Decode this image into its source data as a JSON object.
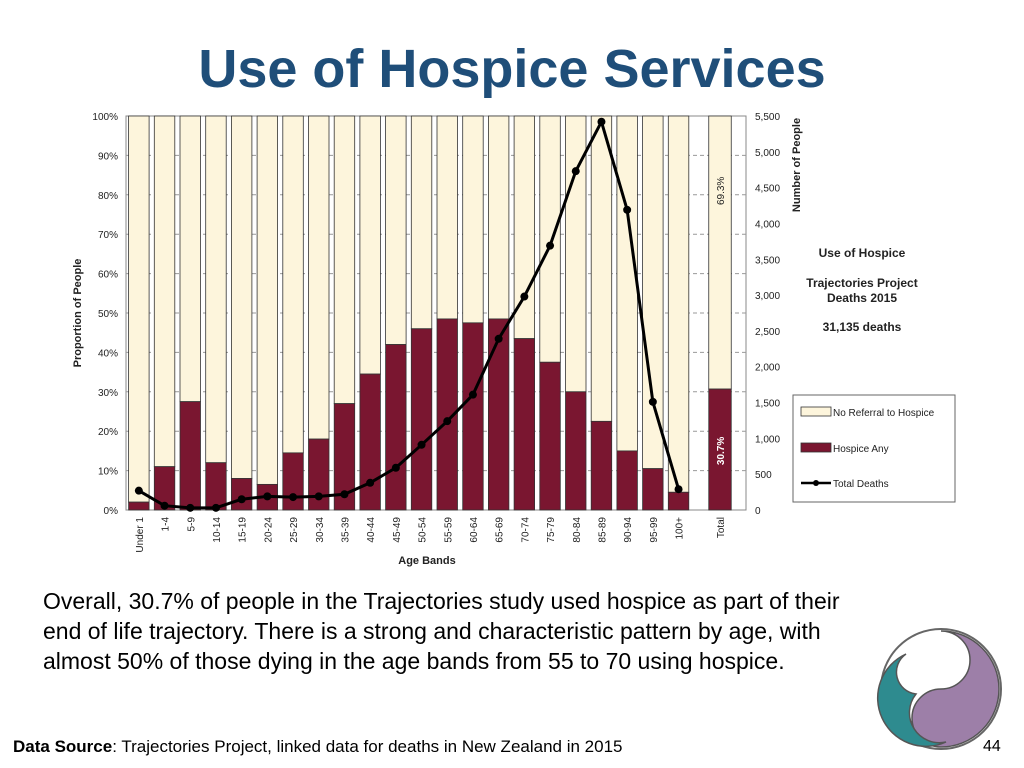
{
  "slide": {
    "title": "Use of Hospice Services",
    "body": "Overall, 30.7% of people in the Trajectories study used hospice as part of their end of life trajectory. There is a strong and characteristic pattern by age, with almost 50% of those dying in the age bands from 55 to 70 using hospice.",
    "source_label": "Data Source",
    "source_text": ": Trajectories Project, linked data for deaths in New Zealand in 2015",
    "page_number": "44"
  },
  "colors": {
    "title": "#1f4e79",
    "no_referral": "#fdf5dc",
    "hospice": "#7a1630",
    "line": "#000000",
    "logo_teal": "#2e8b8f",
    "logo_purple": "#9d7fa8"
  },
  "chart_data": {
    "type": "bar",
    "stacked_percent": true,
    "categories": [
      "Under 1",
      "1-4",
      "5-9",
      "10-14",
      "15-19",
      "20-24",
      "25-29",
      "30-34",
      "35-39",
      "40-44",
      "45-49",
      "50-54",
      "55-59",
      "60-64",
      "65-69",
      "70-74",
      "75-79",
      "80-84",
      "85-89",
      "90-94",
      "95-99",
      "100+"
    ],
    "xlabel": "Age Bands",
    "ylabel": "Proportion of People",
    "y2label": "Number of People",
    "ylim": [
      0,
      100
    ],
    "y2lim": [
      0,
      5500
    ],
    "y_ticks": [
      "0%",
      "10%",
      "20%",
      "30%",
      "40%",
      "50%",
      "60%",
      "70%",
      "80%",
      "90%",
      "100%"
    ],
    "y2_ticks": [
      "0",
      "500",
      "1,000",
      "1,500",
      "2,000",
      "2,500",
      "3,000",
      "3,500",
      "4,000",
      "4,500",
      "5,000",
      "5,500"
    ],
    "series": [
      {
        "name": "No Referral to Hospice",
        "values": [
          98,
          89,
          72.5,
          88,
          92,
          93.5,
          85.5,
          82,
          73,
          65.5,
          58,
          54,
          51.5,
          52.5,
          51.5,
          56.5,
          62.5,
          70,
          77.5,
          85,
          89.5,
          95.5
        ]
      },
      {
        "name": "Hospice Any",
        "values": [
          2,
          11,
          27.5,
          12,
          8,
          6.5,
          14.5,
          18,
          27,
          34.5,
          42,
          46,
          48.5,
          47.5,
          48.5,
          43.5,
          37.5,
          30,
          22.5,
          15,
          10.5,
          4.5
        ]
      },
      {
        "name": "Total Deaths",
        "axis": "right",
        "values": [
          270,
          60,
          30,
          30,
          150,
          190,
          180,
          190,
          220,
          380,
          590,
          910,
          1240,
          1610,
          2390,
          2980,
          3690,
          4730,
          5420,
          4190,
          1510,
          290
        ]
      }
    ],
    "total_bar": {
      "label": "Total",
      "no_referral": 69.3,
      "hospice": 30.7,
      "no_referral_label": "69.3%",
      "hospice_label": "30.7%"
    },
    "annotation": {
      "title": "Use of Hospice",
      "subtitle": "Trajectories Project Deaths 2015",
      "count": "31,135 deaths"
    },
    "legend_position": "right"
  }
}
